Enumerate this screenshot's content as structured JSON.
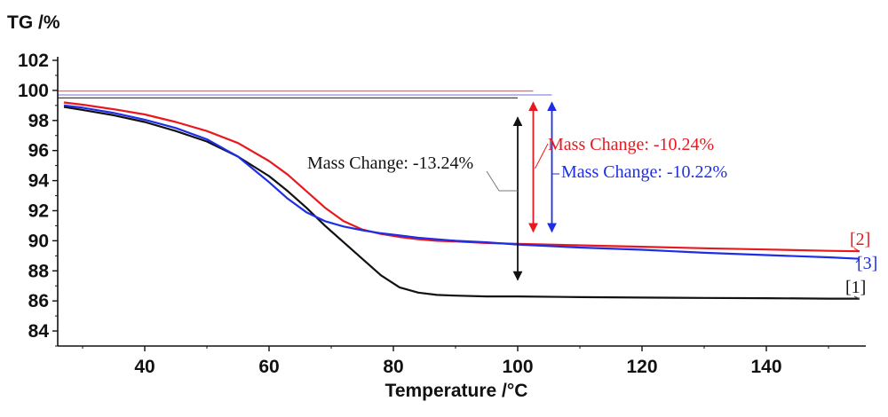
{
  "chart_data": {
    "type": "line",
    "ylabel": "TG /%",
    "xlabel": "Temperature /°C",
    "xlim": [
      26,
      156
    ],
    "ylim": [
      83,
      102
    ],
    "xticks": [
      40,
      60,
      80,
      100,
      120,
      140
    ],
    "yticks": [
      84,
      86,
      88,
      90,
      92,
      94,
      96,
      98,
      100,
      102
    ],
    "series": [
      {
        "name": "[1]",
        "color": "#111111",
        "x": [
          27,
          30,
          35,
          40,
          45,
          50,
          55,
          60,
          63,
          66,
          69,
          72,
          75,
          78,
          81,
          84,
          87,
          90,
          95,
          100,
          110,
          120,
          130,
          140,
          150,
          155
        ],
        "y": [
          98.9,
          98.7,
          98.35,
          97.9,
          97.3,
          96.6,
          95.6,
          94.3,
          93.3,
          92.2,
          91.0,
          89.9,
          88.8,
          87.7,
          86.9,
          86.55,
          86.4,
          86.35,
          86.3,
          86.3,
          86.25,
          86.22,
          86.2,
          86.18,
          86.15,
          86.15
        ]
      },
      {
        "name": "[2]",
        "color": "#e8191e",
        "x": [
          27,
          30,
          35,
          40,
          45,
          50,
          55,
          60,
          63,
          66,
          69,
          72,
          75,
          78,
          81,
          84,
          87,
          90,
          95,
          100,
          110,
          120,
          130,
          140,
          150,
          155
        ],
        "y": [
          99.2,
          99.05,
          98.75,
          98.4,
          97.9,
          97.3,
          96.5,
          95.3,
          94.4,
          93.3,
          92.2,
          91.3,
          90.75,
          90.45,
          90.25,
          90.1,
          90.0,
          89.95,
          89.85,
          89.8,
          89.7,
          89.6,
          89.5,
          89.42,
          89.33,
          89.3
        ]
      },
      {
        "name": "[3]",
        "color": "#1d2ee6",
        "x": [
          27,
          30,
          35,
          40,
          45,
          50,
          55,
          60,
          63,
          66,
          69,
          72,
          75,
          78,
          81,
          84,
          87,
          90,
          95,
          100,
          110,
          120,
          130,
          140,
          150,
          155
        ],
        "y": [
          99.0,
          98.85,
          98.5,
          98.05,
          97.5,
          96.75,
          95.6,
          93.9,
          92.8,
          91.9,
          91.3,
          90.95,
          90.7,
          90.5,
          90.35,
          90.2,
          90.1,
          90.0,
          89.9,
          89.75,
          89.55,
          89.4,
          89.2,
          89.05,
          88.9,
          88.8
        ]
      }
    ],
    "reference_lines": [
      {
        "y": 99.96,
        "x_start": 26,
        "x_end": 102.5,
        "color": "#b88488"
      },
      {
        "y": 99.7,
        "x_start": 26,
        "x_end": 105.5,
        "color": "#8a8ee0"
      },
      {
        "y": 99.5,
        "x_start": 26,
        "x_end": 100,
        "color": "#444444"
      }
    ],
    "annotations": [
      {
        "text": "Mass Change: -13.24%",
        "color": "#111111",
        "arrow_x": 100,
        "y_top": 98.2,
        "y_bottom": 87.4
      },
      {
        "text": "Mass Change: -10.24%",
        "color": "#e8191e",
        "arrow_x": 102.5,
        "y_top": 99.2,
        "y_bottom": 90.6
      },
      {
        "text": "Mass Change: -10.22%",
        "color": "#1d2ee6",
        "arrow_x": 105.5,
        "y_top": 99.2,
        "y_bottom": 90.6
      }
    ]
  }
}
